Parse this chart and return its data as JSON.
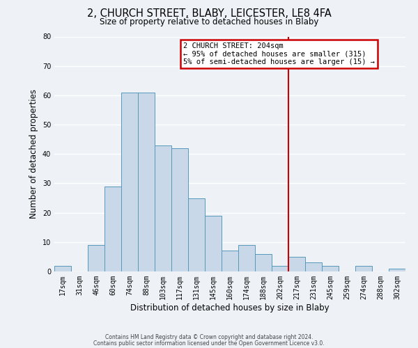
{
  "title": "2, CHURCH STREET, BLABY, LEICESTER, LE8 4FA",
  "subtitle": "Size of property relative to detached houses in Blaby",
  "xlabel": "Distribution of detached houses by size in Blaby",
  "ylabel": "Number of detached properties",
  "footnote1": "Contains HM Land Registry data © Crown copyright and database right 2024.",
  "footnote2": "Contains public sector information licensed under the Open Government Licence v3.0.",
  "bar_labels": [
    "17sqm",
    "31sqm",
    "46sqm",
    "60sqm",
    "74sqm",
    "88sqm",
    "103sqm",
    "117sqm",
    "131sqm",
    "145sqm",
    "160sqm",
    "174sqm",
    "188sqm",
    "202sqm",
    "217sqm",
    "231sqm",
    "245sqm",
    "259sqm",
    "274sqm",
    "288sqm",
    "302sqm"
  ],
  "bar_values": [
    2,
    0,
    9,
    29,
    61,
    61,
    43,
    42,
    25,
    19,
    7,
    9,
    6,
    2,
    5,
    3,
    2,
    0,
    2,
    0,
    1
  ],
  "bar_color": "#c8d8e8",
  "bar_edge_color": "#5599bb",
  "ylim": [
    0,
    80
  ],
  "yticks": [
    0,
    10,
    20,
    30,
    40,
    50,
    60,
    70,
    80
  ],
  "vline_index": 13,
  "vline_color": "#cc0000",
  "annotation_title": "2 CHURCH STREET: 204sqm",
  "annotation_line1": "← 95% of detached houses are smaller (315)",
  "annotation_line2": "5% of semi-detached houses are larger (15) →",
  "annotation_box_color": "#cc0000",
  "bg_color": "#eef2f7",
  "grid_color": "#ffffff",
  "title_fontsize": 10.5,
  "subtitle_fontsize": 8.5,
  "tick_fontsize": 7,
  "ylabel_fontsize": 8.5,
  "xlabel_fontsize": 8.5,
  "ann_fontsize": 7.5,
  "footnote_fontsize": 5.5
}
